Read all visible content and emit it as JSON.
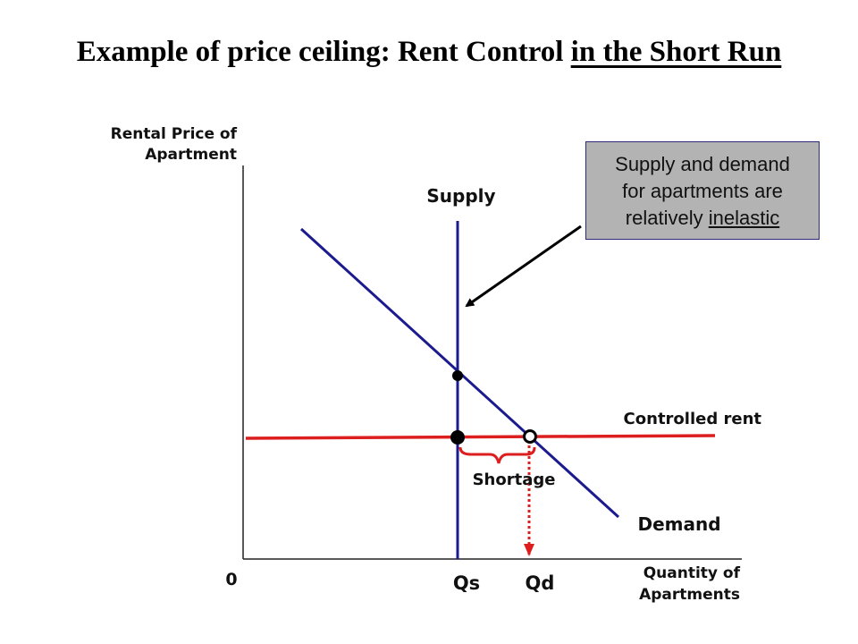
{
  "title": {
    "main": "Example of price ceiling: Rent Control",
    "underlined": "in the Short Run"
  },
  "axes": {
    "y_label_line1": "Rental Price of",
    "y_label_line2": "Apartment",
    "x_label_line1": "Quantity of",
    "x_label_line2": "Apartments",
    "origin": "0"
  },
  "curves": {
    "supply": "Supply",
    "demand": "Demand",
    "controlled_rent": "Controlled rent"
  },
  "markers": {
    "qs": "Qs",
    "qd": "Qd",
    "shortage": "Shortage"
  },
  "note": {
    "line1": "Supply and demand",
    "line2": "for apartments are",
    "line3_prefix": "relatively ",
    "line3_emphasis": "inelastic"
  },
  "colors": {
    "supply_demand_line": "#1b1b8f",
    "controlled_rent_line": "#dd1e1e",
    "note_background": "#b3b3b3"
  }
}
